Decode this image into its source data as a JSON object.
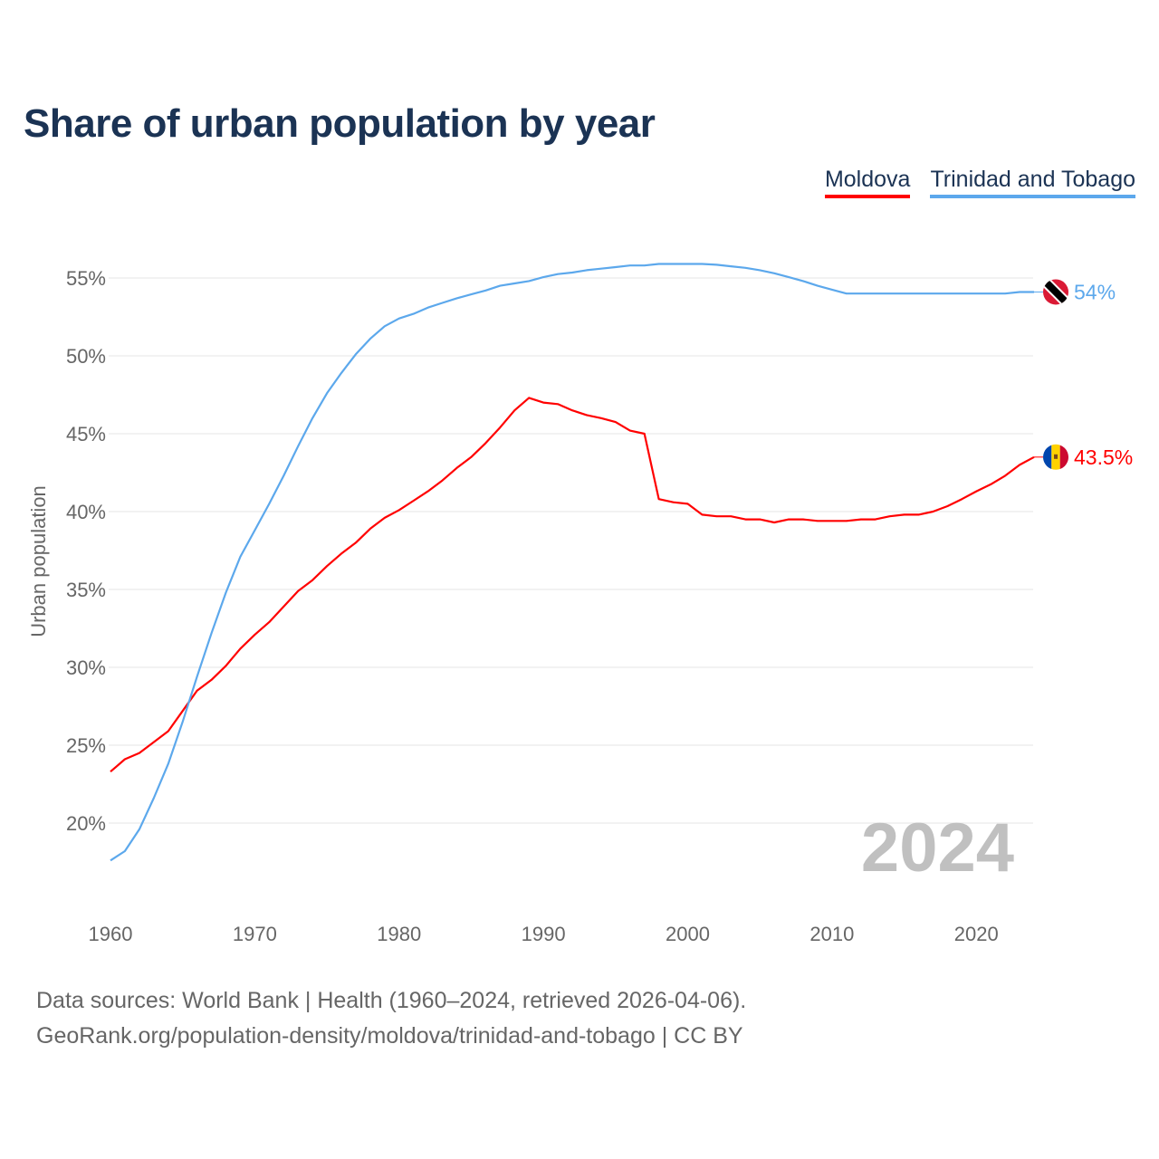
{
  "title": "Share of urban population by year",
  "legend": [
    {
      "label": "Moldova",
      "color": "#ff0000"
    },
    {
      "label": "Trinidad and Tobago",
      "color": "#5ca8ec"
    }
  ],
  "source": {
    "line1": "Data sources: World Bank | Health (1960–2024, retrieved 2026-04-06).",
    "line2": "GeoRank.org/population-density/moldova/trinidad-and-tobago | CC BY"
  },
  "chart_data": {
    "type": "line",
    "title": "Share of urban population by year",
    "xlabel": "",
    "ylabel": "Urban population",
    "xlim": [
      1960,
      2024
    ],
    "ylim": [
      15,
      58
    ],
    "x_ticks": [
      1960,
      1970,
      1980,
      1990,
      2000,
      2010,
      2020
    ],
    "x_tick_labels": [
      "1960",
      "1970",
      "1980",
      "1990",
      "2000",
      "2010",
      "2020"
    ],
    "y_ticks": [
      20,
      25,
      30,
      35,
      40,
      45,
      50,
      55
    ],
    "y_tick_labels": [
      "20%",
      "25%",
      "30%",
      "35%",
      "40%",
      "45%",
      "50%",
      "55%"
    ],
    "grid": true,
    "legend_position": "top-right",
    "year_annotation": "2024",
    "x": [
      1960,
      1961,
      1962,
      1963,
      1964,
      1965,
      1966,
      1967,
      1968,
      1969,
      1970,
      1971,
      1972,
      1973,
      1974,
      1975,
      1976,
      1977,
      1978,
      1979,
      1980,
      1981,
      1982,
      1983,
      1984,
      1985,
      1986,
      1987,
      1988,
      1989,
      1990,
      1991,
      1992,
      1993,
      1994,
      1995,
      1996,
      1997,
      1998,
      1999,
      2000,
      2001,
      2002,
      2003,
      2004,
      2005,
      2006,
      2007,
      2008,
      2009,
      2010,
      2011,
      2012,
      2013,
      2014,
      2015,
      2016,
      2017,
      2018,
      2019,
      2020,
      2021,
      2022,
      2023,
      2024
    ],
    "series": [
      {
        "name": "Moldova",
        "color": "#ff0000",
        "end_label": "43.5%",
        "values": [
          23.3,
          24.1,
          24.5,
          25.2,
          25.9,
          27.2,
          28.5,
          29.2,
          30.1,
          31.2,
          32.1,
          32.9,
          33.9,
          34.9,
          35.6,
          36.5,
          37.3,
          38.0,
          38.9,
          39.6,
          40.1,
          40.7,
          41.3,
          42.0,
          42.8,
          43.5,
          44.4,
          45.4,
          46.5,
          47.3,
          47.0,
          46.9,
          46.5,
          46.2,
          46.0,
          45.75,
          45.2,
          45.0,
          40.8,
          40.6,
          40.5,
          39.8,
          39.7,
          39.7,
          39.5,
          39.5,
          39.3,
          39.5,
          39.5,
          39.4,
          39.4,
          39.4,
          39.5,
          39.5,
          39.7,
          39.8,
          39.8,
          40.0,
          40.35,
          40.8,
          41.3,
          41.75,
          42.3,
          43.0,
          43.5
        ]
      },
      {
        "name": "Trinidad and Tobago",
        "color": "#5ca8ec",
        "end_label": "54%",
        "values": [
          17.6,
          18.2,
          19.6,
          21.6,
          23.8,
          26.5,
          29.4,
          32.2,
          34.8,
          37.1,
          38.8,
          40.5,
          42.3,
          44.2,
          46.0,
          47.6,
          48.9,
          50.1,
          51.1,
          51.9,
          52.4,
          52.7,
          53.1,
          53.4,
          53.7,
          53.95,
          54.2,
          54.5,
          54.65,
          54.8,
          55.05,
          55.25,
          55.35,
          55.5,
          55.6,
          55.7,
          55.8,
          55.8,
          55.9,
          55.9,
          55.9,
          55.9,
          55.85,
          55.75,
          55.65,
          55.5,
          55.3,
          55.05,
          54.8,
          54.5,
          54.25,
          54.0,
          54.0,
          54.0,
          54.0,
          54.0,
          54.0,
          54.0,
          54.0,
          54.0,
          54.0,
          54.0,
          54.0,
          54.1,
          54.1
        ]
      }
    ]
  }
}
